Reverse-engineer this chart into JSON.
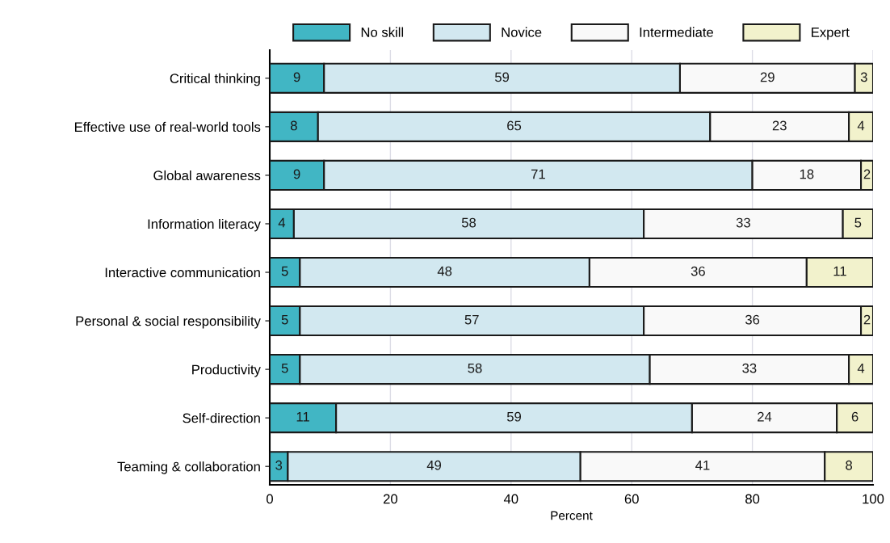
{
  "chart_data": {
    "type": "bar",
    "orientation": "horizontal",
    "stacked": true,
    "categories": [
      "Critical thinking",
      "Effective use of real-world tools",
      "Global awareness",
      "Information literacy",
      "Interactive communication",
      "Personal & social responsibility",
      "Productivity",
      "Self-direction",
      "Teaming & collaboration"
    ],
    "series": [
      {
        "name": "No skill",
        "color": "#41b6c4",
        "values": [
          9,
          8,
          9,
          4,
          5,
          5,
          5,
          11,
          3
        ],
        "value_labels": [
          "9",
          "8",
          "9",
          "4",
          "5",
          "5",
          "5",
          "11",
          "3"
        ]
      },
      {
        "name": "Novice",
        "color": "#d2e8f0",
        "values": [
          59,
          65,
          71,
          58,
          48,
          57,
          58,
          59,
          48.5
        ],
        "value_labels": [
          "59",
          "65",
          "71",
          "58",
          "48",
          "57",
          "58",
          "59",
          "49"
        ]
      },
      {
        "name": "Intermediate",
        "color": "#f9f9f9",
        "values": [
          29,
          23,
          18,
          33,
          36,
          36,
          33,
          24,
          40.5
        ],
        "value_labels": [
          "29",
          "23",
          "18",
          "33",
          "36",
          "36",
          "33",
          "24",
          "41"
        ]
      },
      {
        "name": "Expert",
        "color": "#f2f2cc",
        "values": [
          3,
          4,
          2,
          5,
          11,
          2,
          4,
          6,
          8
        ],
        "value_labels": [
          "3",
          "4",
          "2",
          "5",
          "11",
          "2",
          "4",
          "6",
          "8"
        ]
      }
    ],
    "xlabel": "Percent",
    "xlim": [
      0,
      100
    ],
    "xticks": [
      0,
      20,
      40,
      60,
      80,
      100
    ],
    "grid": "x",
    "legend": "top"
  }
}
